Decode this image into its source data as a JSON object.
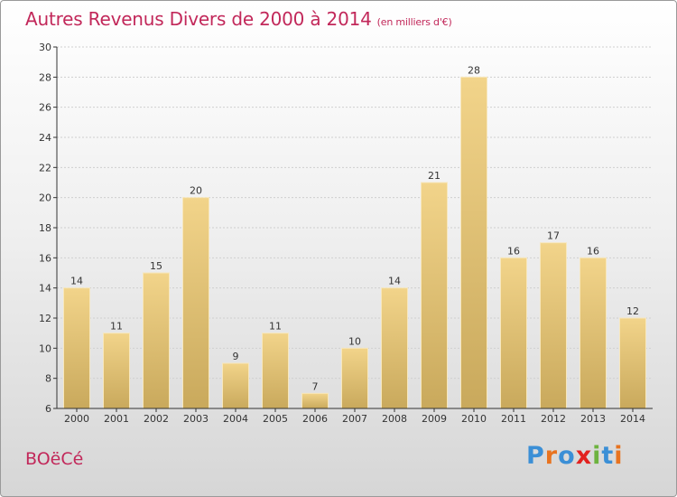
{
  "title": "Autres Revenus Divers de 2000 à 2014",
  "subtitle": "(en milliers d'€)",
  "commune": "BOëCé",
  "brand": {
    "text": "Proxiti",
    "letters": [
      {
        "char": "P",
        "color": "#3b8fd6"
      },
      {
        "char": "r",
        "color": "#e8731f"
      },
      {
        "char": "o",
        "color": "#3b8fd6"
      },
      {
        "char": "x",
        "color": "#e2221f"
      },
      {
        "char": "i",
        "color": "#6db33f"
      },
      {
        "char": "t",
        "color": "#3b8fd6"
      },
      {
        "char": "i",
        "color": "#e8731f"
      }
    ]
  },
  "colors": {
    "title": "#c2285a",
    "bar_top": "#f2d48a",
    "bar_bottom": "#c9a95c",
    "grid": "#cfcfcf",
    "axis": "#333333"
  },
  "chart_data": {
    "type": "bar",
    "categories": [
      "2000",
      "2001",
      "2002",
      "2003",
      "2004",
      "2005",
      "2006",
      "2007",
      "2008",
      "2009",
      "2010",
      "2011",
      "2012",
      "2013",
      "2014"
    ],
    "values": [
      14,
      11,
      15,
      20,
      9,
      11,
      7,
      10,
      14,
      21,
      28,
      16,
      17,
      16,
      12
    ],
    "ylim": [
      6,
      30
    ],
    "yticks": [
      6,
      8,
      10,
      12,
      14,
      16,
      18,
      20,
      22,
      24,
      26,
      28,
      30
    ],
    "grid": true,
    "title": "Autres Revenus Divers de 2000 à 2014",
    "xlabel": "",
    "ylabel": ""
  }
}
